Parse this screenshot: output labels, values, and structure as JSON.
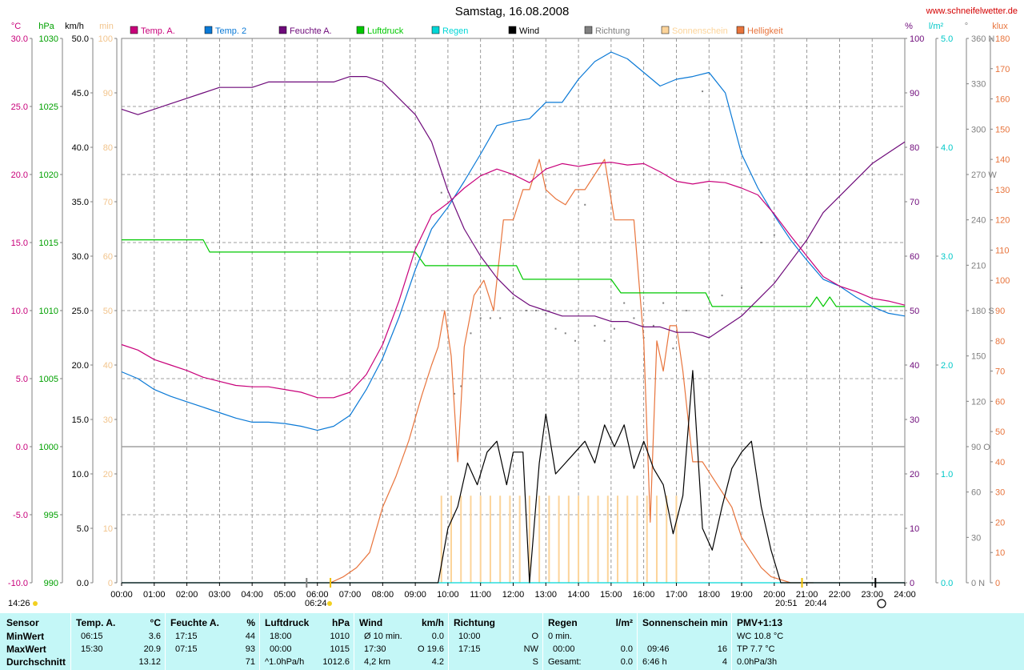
{
  "page": {
    "title": "Samstag, 16.08.2008",
    "site": "www.schneifelwetter.de",
    "sunrise_left": "14:26",
    "sunrise_time": "06:24",
    "sunset_time": "20:51",
    "sunset_time2": "20:44"
  },
  "colors": {
    "temp_a": "#c8007a",
    "temp_2": "#0a79d6",
    "feuchte": "#6e0a7a",
    "luftdruck": "#00c800",
    "regen": "#00d6d6",
    "wind": "#000000",
    "richtung": "#808080",
    "sonnenschein": "#fcd49a",
    "helligkeit": "#e8743c",
    "grid": "#808080",
    "stats_bg": "#c4f7f7"
  },
  "axes": {
    "left": [
      {
        "unit": "°C",
        "color": "#c8007a",
        "ticks": [
          "30.0",
          "25.0",
          "20.0",
          "15.0",
          "10.0",
          "5.0",
          "0.0",
          "-5.0",
          "-10.0"
        ]
      },
      {
        "unit": "hPa",
        "color": "#00a000",
        "ticks": [
          "1030",
          "1025",
          "1020",
          "1015",
          "1010",
          "1005",
          "1000",
          "995",
          "990"
        ]
      },
      {
        "unit": "km/h",
        "color": "#000000",
        "ticks": [
          "50.0",
          "45.0",
          "40.0",
          "35.0",
          "30.0",
          "25.0",
          "20.0",
          "15.0",
          "10.0",
          "5.0",
          "0.0"
        ]
      },
      {
        "unit": "min",
        "color": "#f2c48c",
        "ticks": [
          "100",
          "90",
          "80",
          "70",
          "60",
          "50",
          "40",
          "30",
          "20",
          "10",
          "0"
        ]
      }
    ],
    "right": [
      {
        "unit": "%",
        "color": "#6e0a7a",
        "ticks": [
          "100",
          "90",
          "80",
          "70",
          "60",
          "50",
          "40",
          "30",
          "20",
          "10",
          "0"
        ]
      },
      {
        "unit": "l/m²",
        "color": "#00c8c8",
        "ticks": [
          "5.0",
          "4.0",
          "3.0",
          "2.0",
          "1.0",
          "0.0"
        ]
      },
      {
        "unit": "°",
        "color": "#808080",
        "ticks": [
          "360 N",
          "330",
          "300",
          "270 W",
          "240",
          "210",
          "180 S",
          "150",
          "120",
          "90 O",
          "60",
          "30",
          "0 N"
        ]
      },
      {
        "unit": "klux",
        "color": "#e8743c",
        "ticks": [
          "180",
          "170",
          "160",
          "150",
          "140",
          "130",
          "120",
          "110",
          "100",
          "90",
          "80",
          "70",
          "60",
          "50",
          "40",
          "30",
          "20",
          "10",
          "0"
        ]
      }
    ],
    "x_ticks": [
      "00:00",
      "01:00",
      "02:00",
      "03:00",
      "04:00",
      "05:00",
      "06:00",
      "07:00",
      "08:00",
      "09:00",
      "10:00",
      "11:00",
      "12:00",
      "13:00",
      "14:00",
      "15:00",
      "16:00",
      "17:00",
      "18:00",
      "19:00",
      "20:00",
      "21:00",
      "22:00",
      "23:00",
      "24:00"
    ]
  },
  "legend": [
    {
      "label": "Temp. A.",
      "color": "#c8007a"
    },
    {
      "label": "Temp. 2",
      "color": "#0a79d6"
    },
    {
      "label": "Feuchte A.",
      "color": "#6e0a7a"
    },
    {
      "label": "Luftdruck",
      "color": "#00c800"
    },
    {
      "label": "Regen",
      "color": "#00d6d6"
    },
    {
      "label": "Wind",
      "color": "#000000"
    },
    {
      "label": "Richtung",
      "color": "#808080"
    },
    {
      "label": "Sonnenschein",
      "color": "#fcd49a"
    },
    {
      "label": "Helligkeit",
      "color": "#e8743c"
    }
  ],
  "chart_data": {
    "type": "line",
    "title": "Samstag, 16.08.2008",
    "x_unit": "hour",
    "x_range": [
      0,
      24
    ],
    "grid": true,
    "series": [
      {
        "name": "Temp. A.",
        "unit": "°C",
        "range": [
          -10,
          30
        ],
        "x": [
          0,
          0.5,
          1,
          1.5,
          2,
          2.5,
          3,
          3.5,
          4,
          4.5,
          5,
          5.5,
          6,
          6.5,
          7,
          7.5,
          8,
          8.5,
          9,
          9.5,
          10,
          10.5,
          11,
          11.5,
          12,
          12.5,
          13,
          13.5,
          14,
          14.5,
          15,
          15.5,
          16,
          16.5,
          17,
          17.5,
          18,
          18.5,
          19,
          19.5,
          20,
          20.5,
          21,
          21.5,
          22,
          22.5,
          23,
          23.5,
          24
        ],
        "values": [
          7.5,
          7.1,
          6.4,
          6.0,
          5.6,
          5.1,
          4.8,
          4.5,
          4.4,
          4.4,
          4.2,
          4.0,
          3.6,
          3.6,
          4.0,
          5.3,
          7.5,
          10.7,
          14.5,
          17.0,
          17.9,
          19.0,
          19.9,
          20.4,
          20.0,
          19.4,
          20.4,
          20.8,
          20.6,
          20.8,
          20.9,
          20.7,
          20.8,
          20.2,
          19.5,
          19.3,
          19.5,
          19.4,
          19.0,
          18.5,
          17.1,
          15.5,
          14.0,
          12.5,
          11.8,
          11.4,
          10.9,
          10.7,
          10.4
        ]
      },
      {
        "name": "Temp. 2",
        "unit": "°C",
        "range": [
          -10,
          30
        ],
        "x": [
          0,
          0.5,
          1,
          1.5,
          2,
          2.5,
          3,
          3.5,
          4,
          4.5,
          5,
          5.5,
          6,
          6.5,
          7,
          7.5,
          8,
          8.5,
          9,
          9.5,
          10,
          10.5,
          11,
          11.5,
          12,
          12.5,
          13,
          13.5,
          14,
          14.5,
          15,
          15.5,
          16,
          16.5,
          17,
          17.5,
          18,
          18.5,
          19,
          19.5,
          20,
          20.5,
          21,
          21.5,
          22,
          22.5,
          23,
          23.5,
          24
        ],
        "values": [
          5.5,
          5.0,
          4.2,
          3.7,
          3.3,
          2.9,
          2.5,
          2.1,
          1.8,
          1.8,
          1.7,
          1.5,
          1.2,
          1.5,
          2.3,
          4.2,
          6.5,
          9.5,
          13.0,
          16.0,
          17.6,
          19.5,
          21.5,
          23.6,
          23.9,
          24.1,
          25.3,
          25.3,
          27.0,
          28.3,
          29.0,
          28.5,
          27.5,
          26.5,
          27.0,
          27.2,
          27.5,
          26.0,
          21.5,
          19.0,
          17.0,
          15.2,
          13.7,
          12.3,
          11.8,
          11.0,
          10.3,
          9.8,
          9.6
        ]
      },
      {
        "name": "Feuchte A.",
        "unit": "%",
        "range": [
          0,
          100
        ],
        "x": [
          0,
          0.5,
          1,
          1.5,
          2,
          2.5,
          3,
          3.5,
          4,
          4.5,
          5,
          5.5,
          6,
          6.5,
          7,
          7.5,
          8,
          8.5,
          9,
          9.5,
          10,
          10.5,
          11,
          11.5,
          12,
          12.5,
          13,
          13.5,
          14,
          14.5,
          15,
          15.5,
          16,
          16.5,
          17,
          17.5,
          18,
          18.5,
          19,
          19.5,
          20,
          20.5,
          21,
          21.5,
          22,
          22.5,
          23,
          23.5,
          24
        ],
        "values": [
          87,
          86,
          87,
          88,
          89,
          90,
          91,
          91,
          91,
          92,
          92,
          92,
          92,
          92,
          93,
          93,
          92,
          89,
          86,
          81,
          72,
          65,
          60,
          56,
          53,
          51,
          50,
          49,
          49,
          49,
          48,
          48,
          47,
          47,
          46,
          46,
          45,
          47,
          49,
          52,
          55,
          59,
          63,
          68,
          71,
          74,
          77,
          79,
          81
        ]
      },
      {
        "name": "Luftdruck",
        "unit": "hPa",
        "range": [
          990,
          1030
        ],
        "x": [
          0,
          2.5,
          2.7,
          9,
          9.3,
          12.1,
          12.3,
          15,
          15.3,
          17.9,
          18.1,
          21.1,
          21.3,
          21.5,
          21.7,
          21.9,
          24
        ],
        "values": [
          1015.2,
          1015.2,
          1014.3,
          1014.3,
          1013.3,
          1013.3,
          1012.3,
          1012.3,
          1011.3,
          1011.3,
          1010.3,
          1010.3,
          1011.0,
          1010.3,
          1011.0,
          1010.3,
          1010.3
        ]
      },
      {
        "name": "Regen",
        "unit": "l/m²",
        "range": [
          0,
          5
        ],
        "x": [
          0,
          24
        ],
        "values": [
          0.0,
          0.0
        ]
      },
      {
        "name": "Wind",
        "unit": "km/h",
        "range": [
          0,
          50
        ],
        "x": [
          0,
          9.7,
          10,
          10.3,
          10.6,
          10.9,
          11.2,
          11.5,
          11.8,
          12,
          12.3,
          12.5,
          12.8,
          13,
          13.3,
          13.6,
          13.9,
          14.2,
          14.5,
          14.8,
          15.1,
          15.4,
          15.7,
          16,
          16.3,
          16.6,
          16.9,
          17.2,
          17.5,
          17.8,
          18.1,
          18.4,
          18.7,
          19,
          19.3,
          19.6,
          19.9,
          20.2,
          20.5,
          24
        ],
        "values": [
          0,
          0,
          5,
          7,
          11,
          9,
          12,
          13,
          9,
          12,
          12,
          0,
          11,
          15.5,
          10,
          11,
          12,
          13,
          11,
          14.5,
          12.5,
          14.5,
          10.5,
          13,
          10.5,
          9,
          4.5,
          8,
          19.5,
          5,
          3,
          7,
          10.5,
          12,
          13,
          7,
          3,
          0,
          0,
          0
        ]
      },
      {
        "name": "Sonnenschein",
        "unit": "min",
        "range": [
          0,
          100
        ],
        "x": [
          9.8,
          10.1,
          10.4,
          10.7,
          11.0,
          11.3,
          11.6,
          11.9,
          12.2,
          12.5,
          12.8,
          13.1,
          13.4,
          13.7,
          14.0,
          14.3,
          14.6,
          14.9,
          15.2,
          15.5,
          15.8,
          16.1,
          16.4,
          16.7,
          17.0
        ],
        "values": [
          16,
          16,
          16,
          16,
          16,
          16,
          16,
          16,
          16,
          16,
          16,
          16,
          16,
          16,
          16,
          16,
          16,
          16,
          16,
          16,
          16,
          16,
          16,
          16,
          16
        ]
      },
      {
        "name": "Helligkeit",
        "unit": "klux",
        "range": [
          0,
          180
        ],
        "x": [
          6.4,
          6.8,
          7.2,
          7.6,
          8.0,
          8.4,
          8.8,
          9.2,
          9.5,
          9.7,
          9.9,
          10.1,
          10.3,
          10.5,
          10.8,
          11.1,
          11.4,
          11.7,
          12.0,
          12.3,
          12.5,
          12.8,
          13.0,
          13.3,
          13.6,
          13.9,
          14.2,
          14.5,
          14.8,
          15.1,
          15.4,
          15.7,
          16.0,
          16.2,
          16.4,
          16.6,
          16.8,
          17.0,
          17.2,
          17.5,
          17.8,
          18.1,
          18.4,
          18.7,
          19.0,
          19.3,
          19.6,
          19.9,
          20.2,
          20.5,
          20.8,
          21.0,
          21.2
        ],
        "values": [
          0,
          2,
          5,
          10,
          25,
          35,
          47,
          62,
          72,
          78,
          90,
          75,
          40,
          78,
          95,
          100,
          90,
          120,
          120,
          130,
          130,
          140,
          130,
          127,
          125,
          130,
          130,
          135,
          140,
          120,
          120,
          120,
          80,
          20,
          80,
          70,
          85,
          85,
          70,
          40,
          40,
          35,
          30,
          25,
          15,
          10,
          5,
          2,
          1,
          0,
          0,
          0,
          0
        ]
      },
      {
        "name": "Richtung",
        "unit": "°",
        "range": [
          0,
          360
        ],
        "x": [
          9.8,
          10.2,
          10.4,
          10.7,
          11.0,
          11.3,
          11.6,
          12.0,
          12.4,
          12.7,
          13.0,
          13.3,
          13.6,
          13.9,
          14.2,
          14.5,
          14.8,
          15.1,
          15.4,
          15.7,
          16.0,
          16.3,
          16.6,
          16.9,
          17.3,
          17.8,
          18.0,
          18.4,
          19.0,
          19.6,
          20.0
        ],
        "values": [
          258,
          125,
          130,
          165,
          175,
          175,
          175,
          188,
          180,
          180,
          178,
          168,
          165,
          160,
          250,
          170,
          160,
          168,
          185,
          175,
          162,
          170,
          185,
          155,
          180,
          325,
          260,
          190,
          195,
          225,
          230
        ]
      }
    ]
  },
  "stats": {
    "col1": {
      "h1": "Sensor",
      "r1": "MinWert",
      "r2": "MaxWert",
      "r3": "Durchschnitt"
    },
    "col2": {
      "h1": "Temp. A.",
      "h2": "°C",
      "r1a": "06:15",
      "r1b": "3.6",
      "r2a": "15:30",
      "r2b": "20.9",
      "r3a": "",
      "r3b": "13.12"
    },
    "col3": {
      "h1": "Feuchte A.",
      "h2": "%",
      "r1a": "17:15",
      "r1b": "44",
      "r2a": "07:15",
      "r2b": "93",
      "r3a": "",
      "r3b": "71"
    },
    "col4": {
      "h1": "Luftdruck",
      "h2": "hPa",
      "r1a": "18:00",
      "r1b": "1010",
      "r2a": "00:00",
      "r2b": "1015",
      "r3a": "^1.0hPa/h",
      "r3b": "1012.6"
    },
    "col5": {
      "h1": "Wind",
      "h2": "km/h",
      "r1a": "Ø 10 min.",
      "r1b": "0.0",
      "r2a": "17:30",
      "r2b": "O 19.6",
      "r3a": "4,2 km",
      "r3b": "4.2"
    },
    "col6": {
      "h1": "Richtung",
      "h2": "",
      "r1a": "10:00",
      "r1b": "O",
      "r2a": "17:15",
      "r2b": "NW",
      "r3a": "",
      "r3b": "S"
    },
    "col7": {
      "h1": "Regen",
      "h2": "l/m²",
      "r1a": "0 min.",
      "r1b": "",
      "r2a": "00:00",
      "r2b": "0.0",
      "r3a": "Gesamt:",
      "r3b": "0.0"
    },
    "col8": {
      "h1": "Sonnenschein min",
      "h2": "",
      "r1a": "",
      "r1b": "",
      "r2a": "09:46",
      "r2b": "16",
      "r3a": "6:46 h",
      "r3b": "4"
    },
    "col9": {
      "h1": "PMV+1:13",
      "r1": "WC 10.8 °C",
      "r2": "TP 7.7 °C",
      "r3": "0.0hPa/3h"
    }
  }
}
